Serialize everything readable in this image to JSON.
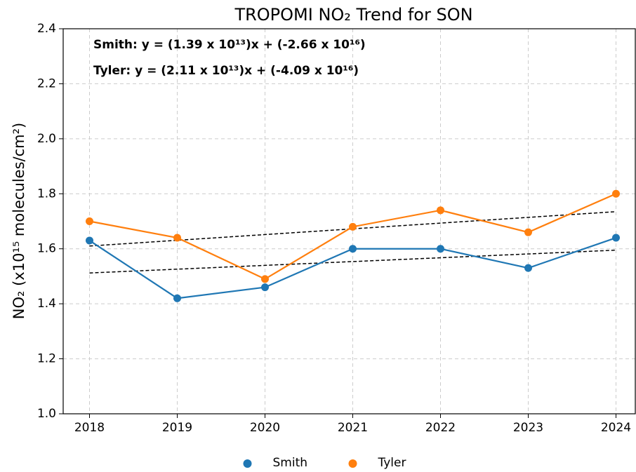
{
  "chart_data": {
    "type": "line",
    "title": "TROPOMI NO₂ Trend for SON",
    "ylabel": "NO₂ (x10¹⁵ molecules/cm²)",
    "annotations": [
      "Smith: y = (1.39 x 10¹³)x + (-2.66 x 10¹⁶)",
      "Tyler: y = (2.11 x 10¹³)x + (-4.09 x 10¹⁶)"
    ],
    "x": [
      2018,
      2019,
      2020,
      2021,
      2022,
      2023,
      2024
    ],
    "series": [
      {
        "name": "Smith",
        "color": "#1f77b4",
        "values": [
          1.63,
          1.42,
          1.46,
          1.6,
          1.6,
          1.53,
          1.64
        ]
      },
      {
        "name": "Tyler",
        "color": "#ff7f0e",
        "values": [
          1.7,
          1.64,
          1.49,
          1.68,
          1.74,
          1.66,
          1.8
        ]
      }
    ],
    "trend_lines": [
      {
        "x": [
          2018,
          2024
        ],
        "values": [
          1.512,
          1.595
        ]
      },
      {
        "x": [
          2018,
          2024
        ],
        "values": [
          1.61,
          1.735
        ]
      }
    ],
    "xlim": [
      2017.7,
      2024.22
    ],
    "xticks": [
      2018,
      2019,
      2020,
      2021,
      2022,
      2023,
      2024
    ],
    "ylim": [
      1.0,
      2.4
    ],
    "yticks": [
      {
        "value": 1.0,
        "label": "1.0"
      },
      {
        "value": 1.2,
        "label": "1.2"
      },
      {
        "value": 1.4,
        "label": "1.4"
      },
      {
        "value": 1.6,
        "label": "1.6"
      },
      {
        "value": 1.8,
        "label": "1.8"
      },
      {
        "value": 2.0,
        "label": "2.0"
      },
      {
        "value": 2.2,
        "label": "2.2"
      },
      {
        "value": 2.4,
        "label": "2.4"
      }
    ],
    "grid": true,
    "legend": "bottom"
  }
}
